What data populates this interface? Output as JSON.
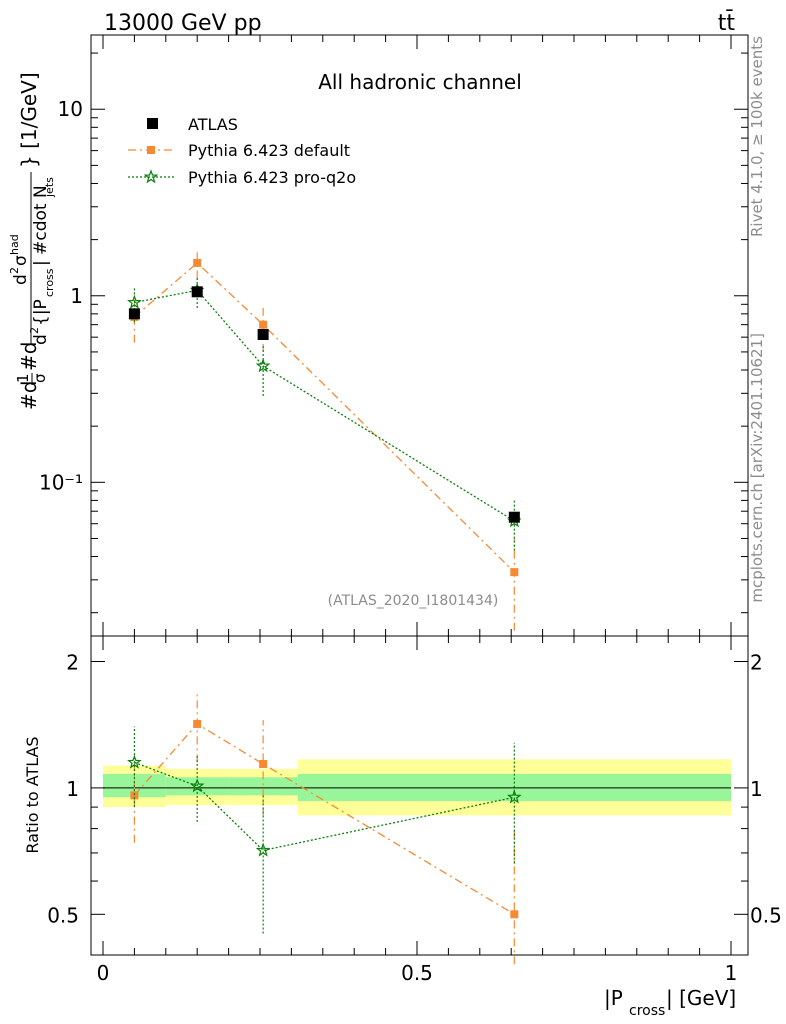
{
  "header": {
    "left": "13000 GeV pp",
    "right": "tt̄"
  },
  "side_labels": {
    "rivet": "Rivet 4.1.0, ≥ 100k events",
    "mcplots": "mcplots.cern.ch [arXiv:2401.10621]"
  },
  "chart_data": [
    {
      "type": "scatter",
      "panel": "main",
      "title": "All hadronic channel",
      "watermark": "(ATLAS_2020_I1801434)",
      "ylabel": "#d¹/σ#d d²σ^{had} / d²{|P_cross| #cdot N_jets} [1/GeV]",
      "yscale": "log",
      "xlim": [
        0,
        1
      ],
      "ylim": [
        0.015,
        25
      ],
      "ytick_labels": [
        "10⁻¹",
        "1",
        "10"
      ],
      "ytick_values": [
        0.1,
        1,
        10
      ],
      "legend": [
        "ATLAS",
        "Pythia 6.423 default",
        "Pythia 6.423 pro-q2o"
      ],
      "series": [
        {
          "name": "ATLAS",
          "color": "#000000",
          "marker": "square",
          "x": [
            0.05,
            0.15,
            0.255,
            0.655
          ],
          "y": [
            0.8,
            1.05,
            0.62,
            0.065
          ],
          "xerr": [
            0.05,
            0.05,
            0.055,
            0.345
          ]
        },
        {
          "name": "Pythia 6.423 default",
          "color": "#f58a32",
          "marker": "square",
          "linestyle": "dashdot",
          "x": [
            0.05,
            0.15,
            0.255,
            0.655
          ],
          "y": [
            0.77,
            1.5,
            0.7,
            0.033
          ],
          "ylow": [
            0.56,
            1.24,
            0.5,
            0.016
          ],
          "yhigh": [
            0.95,
            1.78,
            0.9,
            0.05
          ]
        },
        {
          "name": "Pythia 6.423 pro-q2o",
          "color": "#0a7f0a",
          "marker": "star",
          "linestyle": "dotted",
          "x": [
            0.05,
            0.15,
            0.255,
            0.655
          ],
          "y": [
            0.92,
            1.07,
            0.42,
            0.062
          ],
          "ylow": [
            0.72,
            0.86,
            0.29,
            0.043
          ],
          "yhigh": [
            1.1,
            1.26,
            0.55,
            0.081
          ]
        }
      ]
    },
    {
      "type": "scatter",
      "panel": "ratio",
      "ylabel": "Ratio to ATLAS",
      "xlabel": "|P_cross| [GeV]",
      "xlim": [
        0,
        1
      ],
      "ylim": [
        0.4,
        2.3
      ],
      "xtick_labels": [
        "0",
        "0.5",
        "1"
      ],
      "xtick_values": [
        0,
        0.5,
        1
      ],
      "ytick_labels": [
        "0.5",
        "1",
        "2"
      ],
      "ytick_values": [
        0.5,
        1,
        2
      ],
      "bands": [
        {
          "x0": 0.0,
          "x1": 0.1,
          "inner": [
            0.95,
            1.08
          ],
          "outer": [
            0.9,
            1.13
          ]
        },
        {
          "x0": 0.1,
          "x1": 0.2,
          "inner": [
            0.96,
            1.06
          ],
          "outer": [
            0.91,
            1.11
          ]
        },
        {
          "x0": 0.2,
          "x1": 0.31,
          "inner": [
            0.96,
            1.06
          ],
          "outer": [
            0.91,
            1.11
          ]
        },
        {
          "x0": 0.31,
          "x1": 1.0,
          "inner": [
            0.93,
            1.08
          ],
          "outer": [
            0.86,
            1.17
          ]
        }
      ],
      "series": [
        {
          "name": "Pythia 6.423 default",
          "color": "#f58a32",
          "marker": "square",
          "linestyle": "dashdot",
          "x": [
            0.05,
            0.15,
            0.255,
            0.655
          ],
          "y": [
            0.96,
            1.42,
            1.14,
            0.5
          ],
          "ylow": [
            0.74,
            1.15,
            0.86,
            0.38
          ],
          "yhigh": [
            1.17,
            1.7,
            1.45,
            0.8
          ]
        },
        {
          "name": "Pythia 6.423 pro-q2o",
          "color": "#0a7f0a",
          "marker": "star",
          "linestyle": "dotted",
          "x": [
            0.05,
            0.15,
            0.255,
            0.655
          ],
          "y": [
            1.15,
            1.01,
            0.71,
            0.95
          ],
          "ylow": [
            0.9,
            0.83,
            0.45,
            0.66
          ],
          "yhigh": [
            1.4,
            1.19,
            0.97,
            1.28
          ]
        }
      ]
    }
  ]
}
